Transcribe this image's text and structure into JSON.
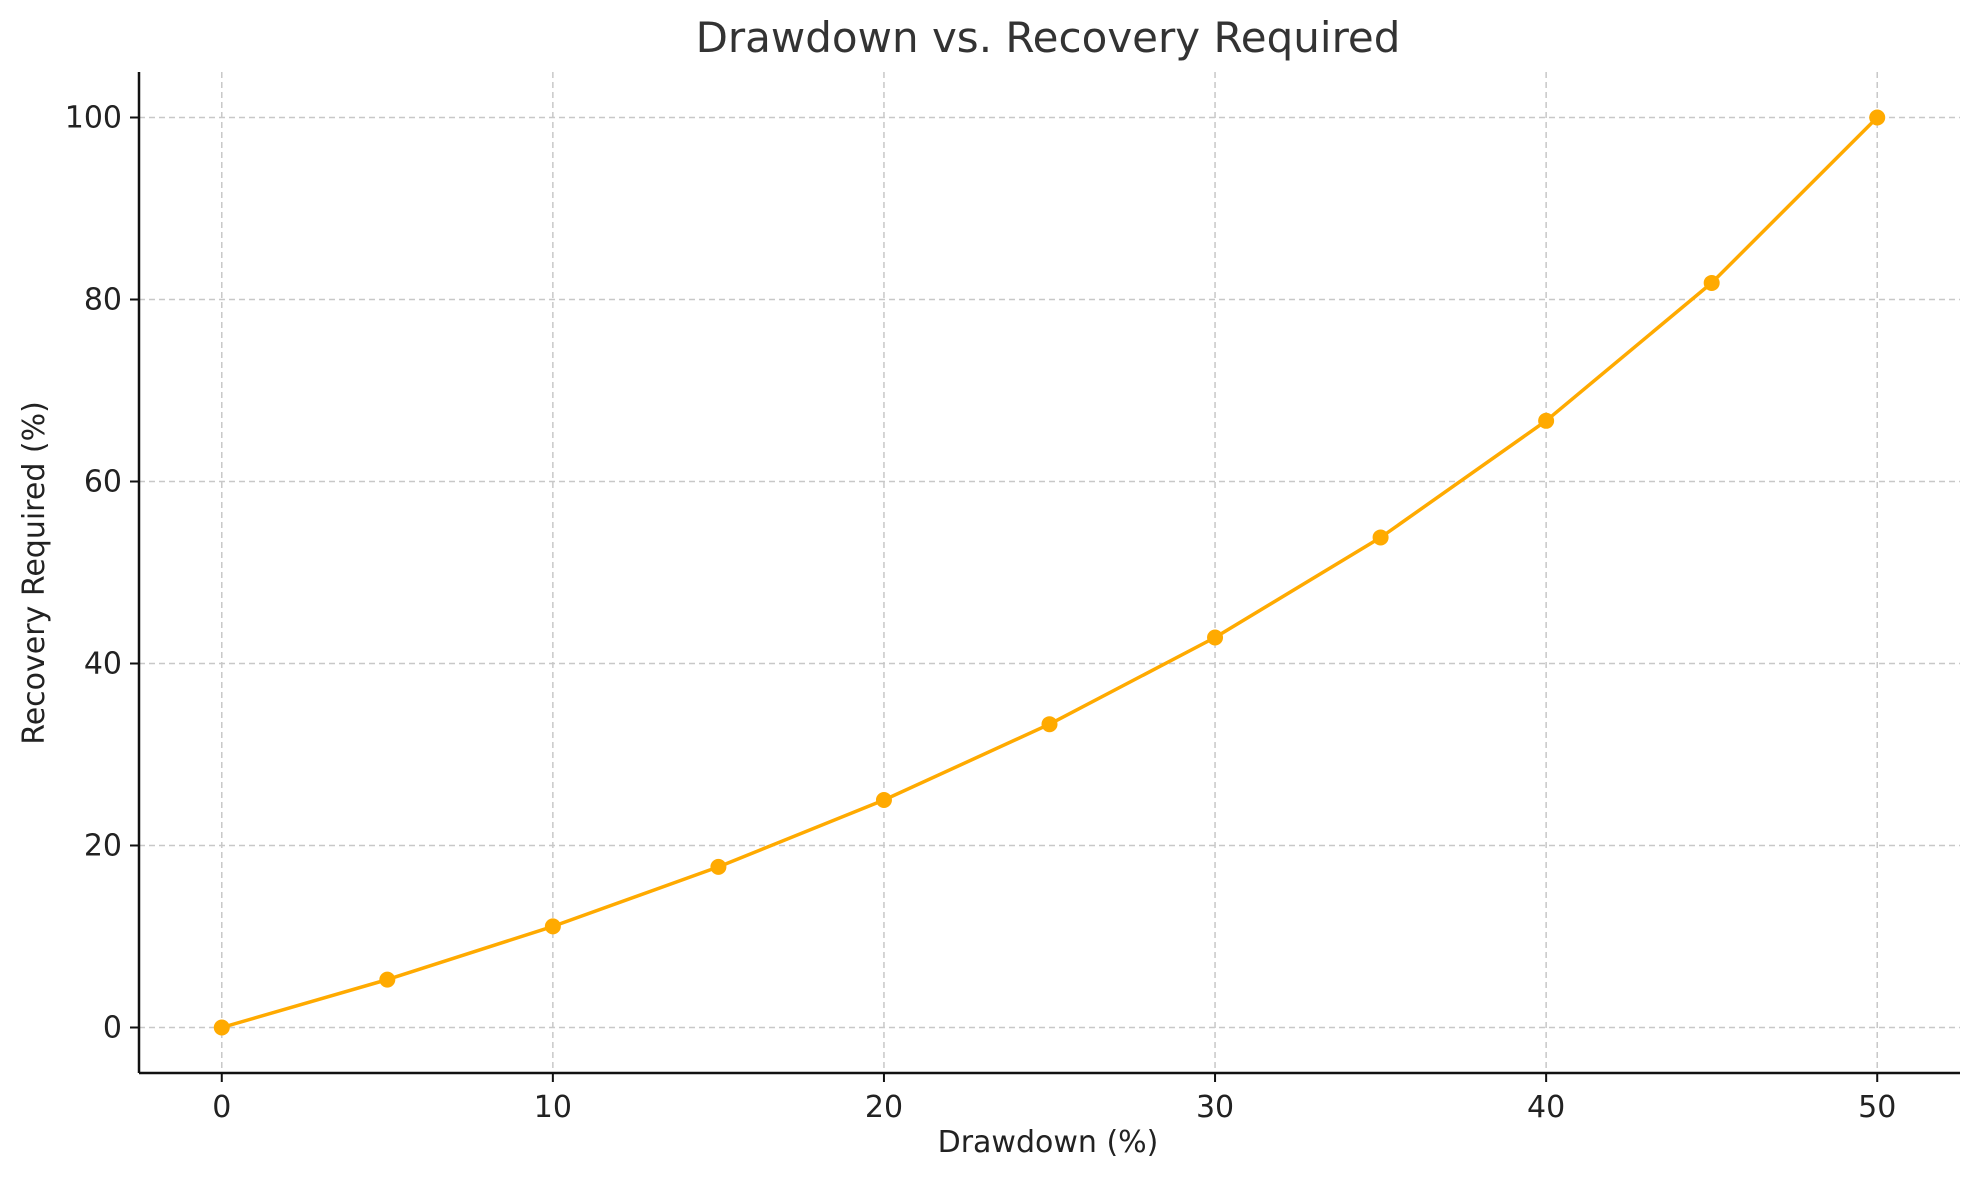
{
  "chart_data": {
    "type": "line",
    "title": "Drawdown vs. Recovery Required",
    "xlabel": "Drawdown (%)",
    "ylabel": "Recovery Required (%)",
    "xlim": [
      -2.5,
      52.5
    ],
    "ylim": [
      -5,
      105
    ],
    "xticks": [
      0,
      10,
      20,
      30,
      40,
      50
    ],
    "yticks": [
      0,
      20,
      40,
      60,
      80,
      100
    ],
    "grid": true,
    "line_color": "#FFAA00",
    "series": [
      {
        "x": [
          0,
          5,
          10,
          15,
          20,
          25,
          30,
          35,
          40,
          45,
          50
        ],
        "y": [
          0,
          5.26,
          11.11,
          17.65,
          25.0,
          33.33,
          42.86,
          53.85,
          66.67,
          81.82,
          100.0
        ]
      }
    ]
  }
}
